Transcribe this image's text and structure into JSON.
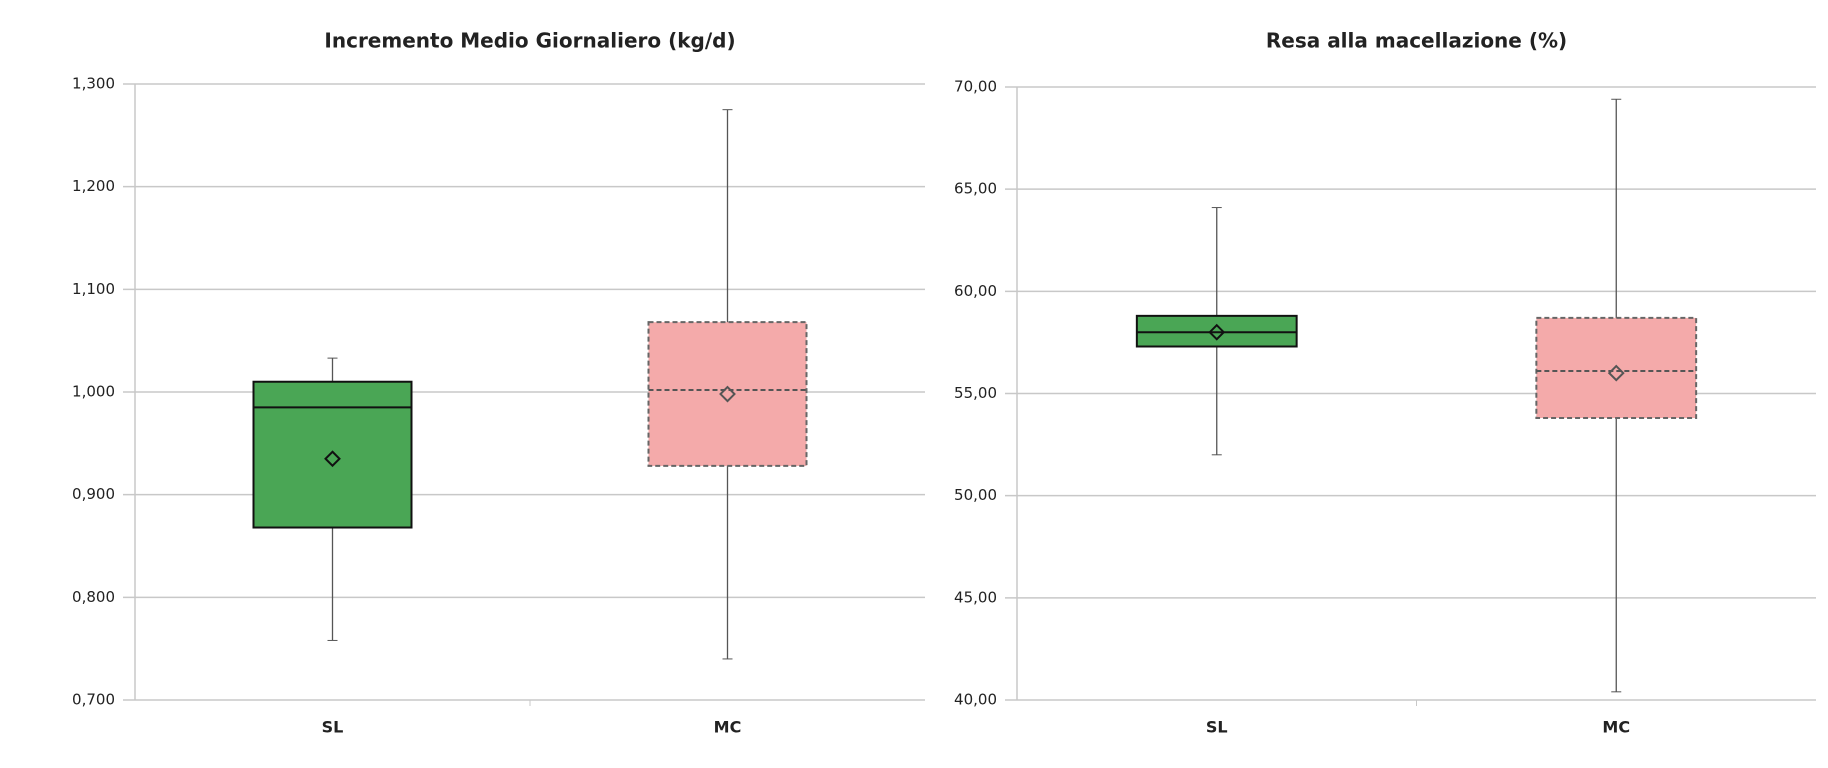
{
  "chart_data": [
    {
      "type": "box",
      "title": "Incremento Medio Giornaliero (kg/d)",
      "ylim": [
        0.7,
        1.3
      ],
      "yticks": [
        {
          "value": 0.7,
          "label": "0,700"
        },
        {
          "value": 0.8,
          "label": "0,800"
        },
        {
          "value": 0.9,
          "label": "0,900"
        },
        {
          "value": 1.0,
          "label": "1,000"
        },
        {
          "value": 1.1,
          "label": "1,100"
        },
        {
          "value": 1.2,
          "label": "1,200"
        },
        {
          "value": 1.3,
          "label": "1,300"
        }
      ],
      "grid": true,
      "boxes": [
        {
          "name": "SL",
          "color": "#4aa655",
          "border": "solid",
          "min": 0.758,
          "q1": 0.868,
          "median": 0.985,
          "q3": 1.01,
          "max": 1.033,
          "mean": 0.935
        },
        {
          "name": "MC",
          "color": "#f4aaaa",
          "border": "dashed",
          "min": 0.74,
          "q1": 0.928,
          "median": 1.002,
          "q3": 1.068,
          "max": 1.275,
          "mean": 0.998
        }
      ]
    },
    {
      "type": "box",
      "title": "Resa alla macellazione (%)",
      "ylim": [
        40,
        70
      ],
      "yticks": [
        {
          "value": 40,
          "label": "40,00"
        },
        {
          "value": 45,
          "label": "45,00"
        },
        {
          "value": 50,
          "label": "50,00"
        },
        {
          "value": 55,
          "label": "55,00"
        },
        {
          "value": 60,
          "label": "60,00"
        },
        {
          "value": 65,
          "label": "65,00"
        },
        {
          "value": 70,
          "label": "70,00"
        }
      ],
      "grid": true,
      "boxes": [
        {
          "name": "SL",
          "color": "#4aa655",
          "border": "solid",
          "min": 52.0,
          "q1": 57.3,
          "median": 58.0,
          "q3": 58.8,
          "max": 64.1,
          "mean": 58.0
        },
        {
          "name": "MC",
          "color": "#f4aaaa",
          "border": "dashed",
          "min": 40.4,
          "q1": 53.8,
          "median": 56.1,
          "q3": 58.7,
          "max": 69.4,
          "mean": 56.0
        }
      ]
    }
  ]
}
